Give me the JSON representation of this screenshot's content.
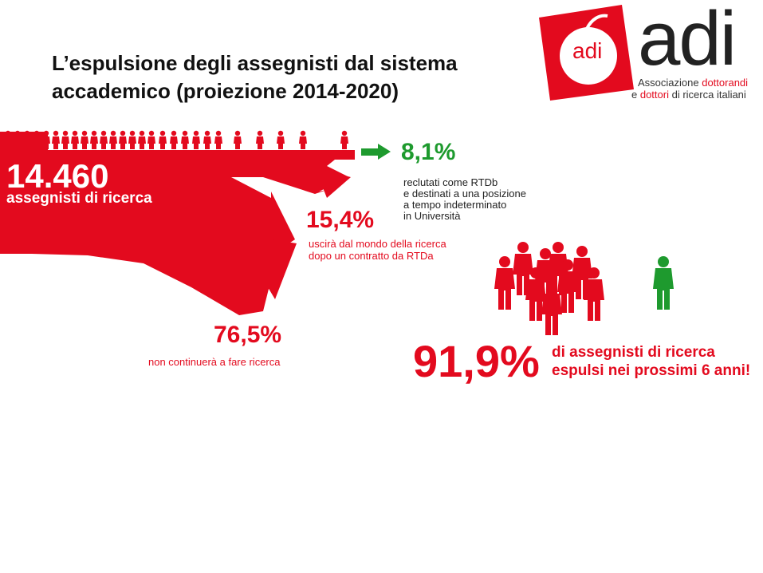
{
  "title_line1": "L’espulsione degli assegnisti dal sistema",
  "title_line2": "accademico (proiezione 2014-2020)",
  "logo": {
    "badge_text": "adi",
    "name_text": "adi",
    "tagline_line1_a": "Associazione ",
    "tagline_line1_b": "dottorandi",
    "tagline_line2_a": "e ",
    "tagline_line2_b": "dottori",
    "tagline_line2_c": " di ricerca italiani"
  },
  "total": {
    "value": "14.460",
    "label": "assegnisti di ricerca"
  },
  "rtdb": {
    "pct": "8,1%",
    "line1": "reclutati come RTDb",
    "line2": "e destinati a una posizione",
    "line3": "a tempo indeterminato",
    "line4": "in Università"
  },
  "rtda": {
    "pct": "15,4%",
    "line1": "uscirà dal mondo della ricerca",
    "line2": "dopo un contratto da RTDa"
  },
  "stop": {
    "pct": "76,5%",
    "line1": "non continuerà a fare ricerca"
  },
  "expelled": {
    "pct": "91,9%",
    "line1": "di assegnisti di ricerca",
    "line2": "espulsi nei prossimi 6 anni!"
  },
  "colors": {
    "red": "#e30a1e",
    "green": "#1e9a2e"
  },
  "icons": [
    "person-icon",
    "apple-logo-icon",
    "arrow-icon"
  ]
}
